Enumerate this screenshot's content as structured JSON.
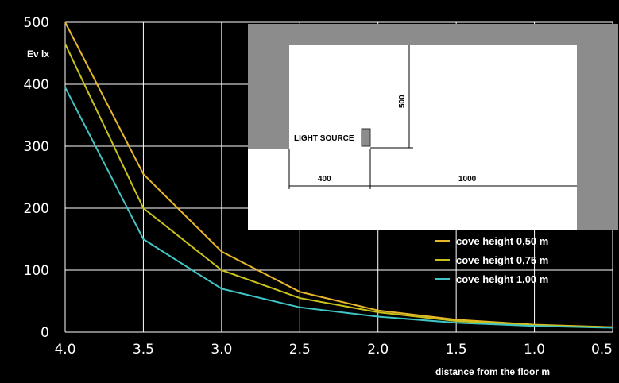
{
  "chart_data": {
    "type": "line",
    "title": "",
    "xlabel": "distance from the floor m",
    "ylabel": "Ev lx",
    "x": [
      4.0,
      3.5,
      3.0,
      2.5,
      2.0,
      1.5,
      1.0,
      0.5
    ],
    "x_tick_labels": [
      "4.0",
      "3.5",
      "3.0",
      "2.5",
      "2.0",
      "1.5",
      "1.0",
      "0.5"
    ],
    "y_tick_labels": [
      "0",
      "100",
      "200",
      "300",
      "400",
      "500"
    ],
    "xlim": [
      4.0,
      0.5
    ],
    "ylim": [
      0,
      500
    ],
    "grid": true,
    "legend_position": "right",
    "series": [
      {
        "name": "cove height 0,50 m",
        "color": "#e8b62a",
        "values": [
          500,
          255,
          130,
          65,
          35,
          20,
          12,
          8
        ]
      },
      {
        "name": "cove height 0,75 m",
        "color": "#c8c21a",
        "values": [
          465,
          200,
          100,
          55,
          32,
          18,
          11,
          8
        ]
      },
      {
        "name": "cove height 1,00 m",
        "color": "#40c4c4",
        "values": [
          395,
          150,
          70,
          40,
          25,
          15,
          10,
          7
        ]
      }
    ]
  },
  "inset": {
    "light_source_label": "LIGHT SOURCE",
    "dim_vertical": "500",
    "dim_horizontal_left": "400",
    "dim_horizontal_right": "1000"
  },
  "colors": {
    "background": "#000000",
    "grid": "#ffffff",
    "wall": "#8c8c8c"
  }
}
